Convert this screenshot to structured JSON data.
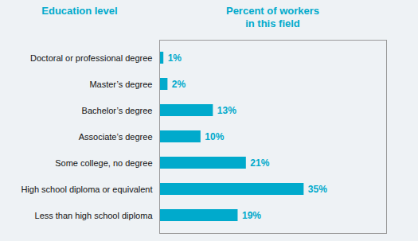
{
  "chart_data": {
    "type": "bar",
    "orientation": "horizontal",
    "ylabel": "Education level",
    "xlabel": "Percent of workers\nin this field",
    "categories": [
      "Less than high school diploma",
      "High school diploma or equivalent",
      "Some college, no degree",
      "Associate’s degree",
      "Bachelor’s degree",
      "Master’s degree",
      "Doctoral or professional degree"
    ],
    "values": [
      19,
      35,
      21,
      10,
      13,
      2,
      1
    ],
    "value_labels": [
      "19%",
      "35%",
      "21%",
      "10%",
      "13%",
      "2%",
      "1%"
    ],
    "data_labels": true,
    "color": "#00aacc",
    "xlim": [
      0,
      55
    ],
    "xticks": [],
    "tick_labels": "y",
    "grid": false
  }
}
